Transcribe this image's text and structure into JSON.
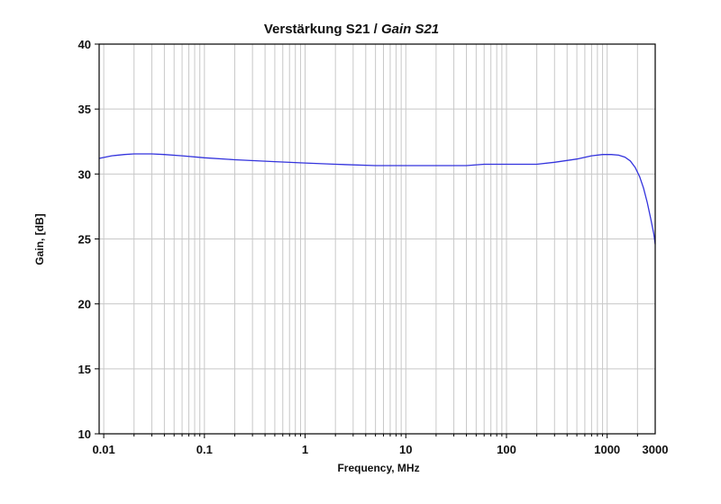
{
  "chart_data": {
    "type": "line",
    "title_main": "Verstärkung S21 / ",
    "title_italic": "Gain S21",
    "xlabel": "Frequency, MHz",
    "ylabel": "Gain, [dB]",
    "x_scale": "log",
    "xlim": [
      0.009,
      3000
    ],
    "ylim": [
      10,
      40
    ],
    "grid": true,
    "x_tick_labels": [
      {
        "value": 0.01,
        "label": "0.01"
      },
      {
        "value": 0.1,
        "label": "0.1"
      },
      {
        "value": 1,
        "label": "1"
      },
      {
        "value": 10,
        "label": "10"
      },
      {
        "value": 100,
        "label": "100"
      },
      {
        "value": 1000,
        "label": "1000"
      },
      {
        "value": 3000,
        "label": "3000"
      }
    ],
    "y_ticks": [
      10,
      15,
      20,
      25,
      30,
      35,
      40
    ],
    "series": [
      {
        "color": "#3333dd",
        "x": [
          0.009,
          0.012,
          0.016,
          0.02,
          0.03,
          0.04,
          0.06,
          0.1,
          0.2,
          0.5,
          1,
          2,
          5,
          10,
          20,
          40,
          60,
          80,
          100,
          150,
          200,
          300,
          500,
          700,
          900,
          1100,
          1300,
          1500,
          1700,
          1900,
          2100,
          2300,
          2500,
          2700,
          2900,
          3000
        ],
        "y": [
          31.2,
          31.4,
          31.5,
          31.55,
          31.55,
          31.5,
          31.4,
          31.25,
          31.1,
          30.95,
          30.85,
          30.75,
          30.65,
          30.65,
          30.65,
          30.65,
          30.75,
          30.75,
          30.75,
          30.75,
          30.75,
          30.9,
          31.15,
          31.4,
          31.5,
          31.5,
          31.45,
          31.3,
          31.0,
          30.5,
          29.8,
          28.9,
          27.8,
          26.6,
          25.4,
          24.6
        ]
      }
    ]
  }
}
